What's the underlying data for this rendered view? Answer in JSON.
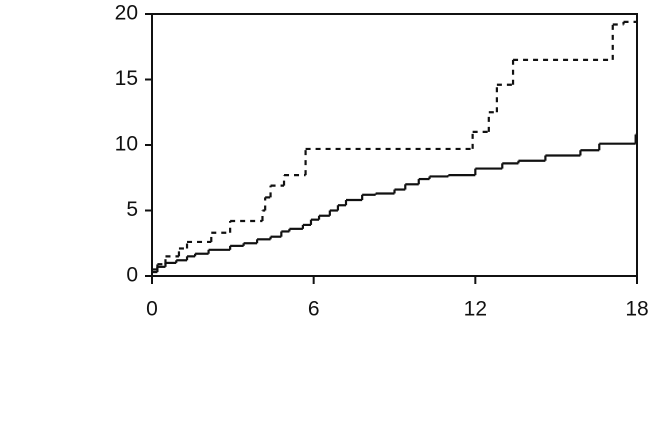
{
  "chart_data": {
    "type": "step",
    "xlim": [
      0,
      18
    ],
    "xticks": [
      0,
      6,
      12,
      18
    ],
    "ylim": [
      0,
      20
    ],
    "yticks": [
      0,
      5,
      10,
      15,
      20
    ],
    "series": [
      {
        "color": "#111111",
        "line_style": "solid",
        "x": [
          0,
          0.2,
          0.5,
          0.9,
          1.3,
          1.6,
          2.1,
          2.9,
          3.4,
          3.9,
          4.4,
          4.8,
          5.1,
          5.6,
          5.9,
          6.2,
          6.6,
          6.9,
          7.2,
          7.8,
          8.3,
          9.0,
          9.4,
          9.9,
          10.3,
          11.0,
          12.0,
          13.0,
          13.6,
          14.6,
          15.9,
          16.6,
          17.95
        ],
        "values": [
          0.3,
          0.7,
          1.0,
          1.2,
          1.5,
          1.7,
          2.0,
          2.3,
          2.5,
          2.8,
          3.0,
          3.4,
          3.6,
          3.9,
          4.3,
          4.6,
          5.0,
          5.4,
          5.8,
          6.2,
          6.3,
          6.6,
          7.0,
          7.4,
          7.6,
          7.7,
          8.2,
          8.6,
          8.8,
          9.2,
          9.6,
          10.1,
          10.8
        ]
      },
      {
        "color": "#111111",
        "line_style": "dotted",
        "x": [
          0,
          0.2,
          0.5,
          1.0,
          1.3,
          2.2,
          2.9,
          4.1,
          4.2,
          4.4,
          4.9,
          5.7,
          11.9,
          12.5,
          12.8,
          13.4,
          17.1,
          17.5
        ],
        "values": [
          0.5,
          0.9,
          1.5,
          2.1,
          2.6,
          3.3,
          4.2,
          5.0,
          6.0,
          6.9,
          7.7,
          9.7,
          11.0,
          12.5,
          14.6,
          16.5,
          19.2,
          19.4
        ]
      }
    ]
  }
}
